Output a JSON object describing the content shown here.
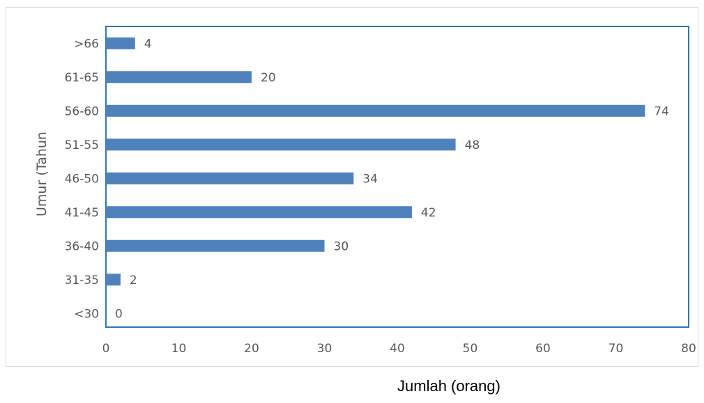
{
  "chart_data": {
    "type": "bar",
    "orientation": "horizontal",
    "title": "",
    "xlabel": "Jumlah (orang)",
    "ylabel": "Umur (Tahun",
    "categories": [
      ">66",
      "61-65",
      "56-60",
      "51-55",
      "46-50",
      "41-45",
      "36-40",
      "31-35",
      "<30"
    ],
    "values": [
      4,
      20,
      74,
      48,
      34,
      42,
      30,
      2,
      0
    ],
    "xlim": [
      0,
      80
    ],
    "xticks": [
      0,
      10,
      20,
      30,
      40,
      50,
      60,
      70,
      80
    ],
    "grid": false,
    "data_labels": true,
    "colors": {
      "bar": "#4f81bd",
      "plot_border": "#2e75b6",
      "outer_border": "#d9d9d9",
      "text": "#595959"
    }
  }
}
